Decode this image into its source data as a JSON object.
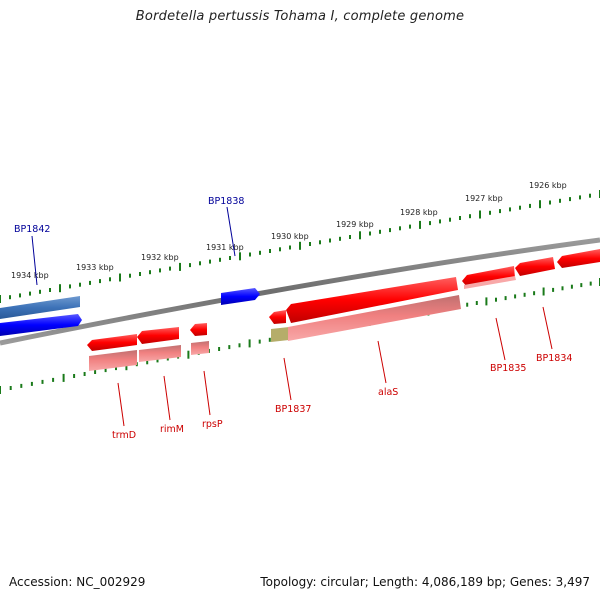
{
  "title": "Bordetella pertussis Tohama I, complete genome",
  "footer": {
    "accession": "Accession: NC_002929",
    "topology": "Topology: circular; Length: 4,086,189 bp; Genes: 3,497"
  },
  "colors": {
    "forward_gene": "#0000ff",
    "forward_gene_faded": "#3d72b8",
    "reverse_gene": "#ff0000",
    "reverse_rna": "#f08080",
    "other_feature": "#b5ad6a",
    "tick": "#1a7a1a",
    "backbone": "#808080",
    "label_forward": "#000099",
    "label_reverse": "#cc0000"
  },
  "scale_labels": [
    "1934 kbp",
    "1933 kbp",
    "1932 kbp",
    "1931 kbp",
    "1930 kbp",
    "1929 kbp",
    "1928 kbp",
    "1927 kbp",
    "1926 kbp"
  ],
  "gene_labels": {
    "forward": [
      "BP1842",
      "BP1838"
    ],
    "reverse": [
      "trmD",
      "rimM",
      "rpsP",
      "BP1837",
      "alaS",
      "BP1835",
      "BP1834"
    ]
  }
}
